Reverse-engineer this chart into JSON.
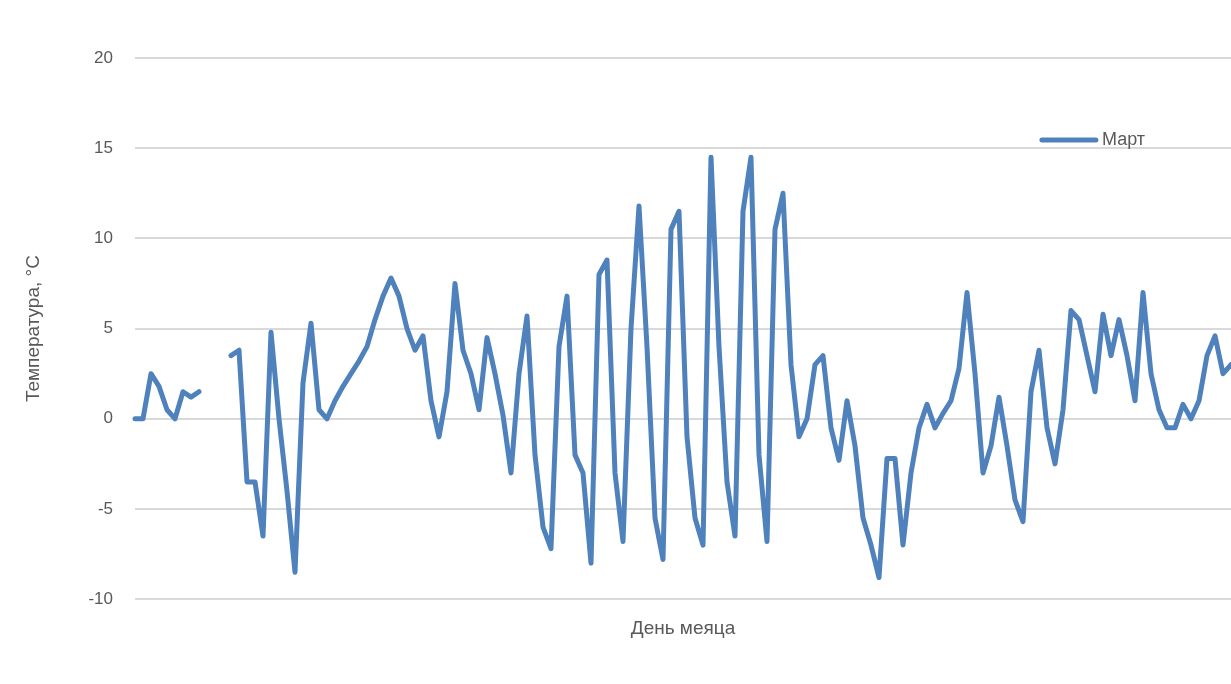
{
  "chart_data": {
    "type": "line",
    "xlabel": "День меяца",
    "ylabel": "Температура, °C",
    "categories": [
      null,
      null,
      null,
      null,
      null,
      null,
      null,
      null,
      null,
      null,
      null,
      null,
      null,
      null,
      null,
      null,
      null,
      null,
      null,
      null,
      null,
      null,
      null,
      null,
      null,
      null,
      null,
      null,
      null,
      null,
      null,
      null,
      null,
      null,
      null,
      null,
      null,
      null,
      null,
      null,
      null,
      null,
      null,
      null,
      null,
      null,
      null,
      null,
      null,
      null,
      null,
      null,
      null,
      null,
      null,
      null,
      null,
      null,
      null,
      null,
      null,
      null,
      null,
      null,
      null,
      null,
      null,
      null,
      null,
      null,
      null,
      null,
      null,
      null,
      null,
      null,
      null,
      null,
      null,
      null,
      null,
      null,
      null,
      null,
      null,
      null,
      null,
      null,
      null,
      null,
      null,
      null,
      null,
      null,
      null,
      null,
      null,
      null,
      null,
      null,
      null,
      null,
      null,
      null,
      null,
      null,
      null,
      null,
      null,
      null,
      null,
      null,
      null,
      null,
      null,
      null,
      null,
      null,
      null,
      null,
      null,
      null,
      null,
      null,
      null,
      null,
      null,
      null,
      null,
      null,
      null,
      null,
      null,
      null,
      null,
      null,
      null,
      null
    ],
    "series": [
      {
        "color": "#4f81bd",
        "values": [
          0,
          0,
          2.5,
          1.8,
          0.5,
          0,
          1.5,
          1.2,
          1.5,
          null,
          null,
          null,
          null,
          null,
          null,
          null,
          null,
          null,
          null,
          null,
          null,
          null,
          null,
          null,
          null,
          null,
          null,
          null,
          null,
          null,
          null,
          null,
          null,
          null,
          null,
          null,
          null,
          null,
          null,
          null,
          null,
          null,
          null,
          null,
          null,
          null,
          null,
          null,
          null,
          null,
          null,
          null,
          null,
          null,
          null,
          null,
          null,
          null,
          null,
          null,
          null,
          null,
          null,
          null,
          null,
          null,
          null,
          null,
          null,
          null,
          null,
          null,
          null,
          null,
          null,
          null,
          null,
          null,
          null,
          null,
          null,
          null,
          null,
          null,
          null,
          null,
          null,
          null,
          null,
          null,
          null,
          null,
          null,
          null,
          null,
          null,
          null,
          null,
          null,
          null,
          null,
          null,
          null,
          null,
          null,
          null,
          null,
          null,
          null,
          null,
          null,
          null,
          null,
          null,
          null,
          null,
          null,
          null,
          null,
          null,
          null,
          null,
          null,
          null,
          null,
          null,
          null,
          null,
          null,
          null,
          null,
          null,
          null,
          null,
          null,
          null,
          null,
          null
        ]
      },
      {
        "name": "Март",
        "color": "#4f81bd",
        "values": [
          null,
          null,
          null,
          null,
          null,
          null,
          null,
          null,
          null,
          null,
          null,
          null,
          3.5,
          3.8,
          -3.5,
          -3.5,
          -6.5,
          4.8,
          0,
          -4,
          -8.5,
          2,
          5.3,
          0.5,
          0,
          1,
          1.8,
          2.5,
          3.2,
          4,
          5.5,
          6.8,
          7.8,
          6.8,
          5,
          3.8,
          4.6,
          1,
          -1,
          1.5,
          7.5,
          3.8,
          2.5,
          0.5,
          4.5,
          2.5,
          0.2,
          -3,
          2.5,
          5.7,
          -2,
          -6,
          -7.2,
          4,
          6.8,
          -2,
          -3,
          -8,
          8,
          8.8,
          -3,
          -6.8,
          5,
          11.8,
          4,
          -5.5,
          -7.8,
          10.5,
          11.5,
          -1,
          -5.5,
          -7,
          14.5,
          4,
          -3.5,
          -6.5,
          11.5,
          14.5,
          -2,
          -6.8,
          10.5,
          12.5,
          3,
          -1,
          0,
          3,
          3.5,
          -0.5,
          -2.3,
          1,
          -1.5,
          -5.5,
          -7,
          -8.8,
          -2.2,
          -2.2,
          -7,
          -3,
          -0.5,
          0.8,
          -0.5,
          0.3,
          1,
          2.8,
          7,
          2.5,
          -3,
          -1.5,
          1.2,
          -1.5,
          -4.5,
          -5.7,
          1.5,
          3.8,
          -0.5,
          -2.5,
          0.5,
          6,
          5.5,
          3.5,
          1.5,
          5.8,
          3.5,
          5.5,
          3.5,
          1,
          7,
          2.5,
          0.5,
          -0.5,
          -0.5,
          0.8,
          0,
          1,
          3.5,
          4.6,
          2.5,
          3
        ]
      }
    ],
    "ylim": [
      -10,
      20
    ],
    "yticks": [
      -10,
      -5,
      0,
      5,
      10,
      15,
      20
    ],
    "grid": "y",
    "legend": "top right",
    "tick_labels": "y",
    "marker": "none",
    "line_style": "solid"
  }
}
